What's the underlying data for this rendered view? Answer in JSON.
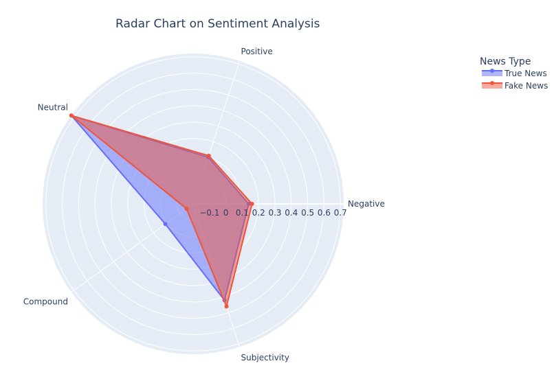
{
  "chart_data": {
    "type": "radar",
    "title": "Radar Chart on Sentiment Analysis",
    "categories": [
      "Negative",
      "Positive",
      "Neutral",
      "Compound",
      "Subjectivity"
    ],
    "radial_range": [
      -0.2,
      0.72
    ],
    "radial_ticks": [
      "−0.1",
      "0",
      "0.1",
      "0.2",
      "0.3",
      "0.4",
      "0.5",
      "0.6",
      "0.7"
    ],
    "radial_tick_values": [
      -0.1,
      0,
      0.1,
      0.2,
      0.3,
      0.4,
      0.5,
      0.6,
      0.7
    ],
    "series": [
      {
        "name": "True News",
        "values": [
          0.14,
          0.1,
          0.72,
          0.01,
          0.42
        ],
        "color": "#636efa"
      },
      {
        "name": "Fake News",
        "values": [
          0.16,
          0.11,
          0.72,
          -0.15,
          0.46
        ],
        "color": "#ef553b"
      }
    ],
    "legend": {
      "title": "News Type",
      "position": "top-right"
    },
    "background": "#e5ecf6",
    "grid_color": "#ffffff"
  }
}
